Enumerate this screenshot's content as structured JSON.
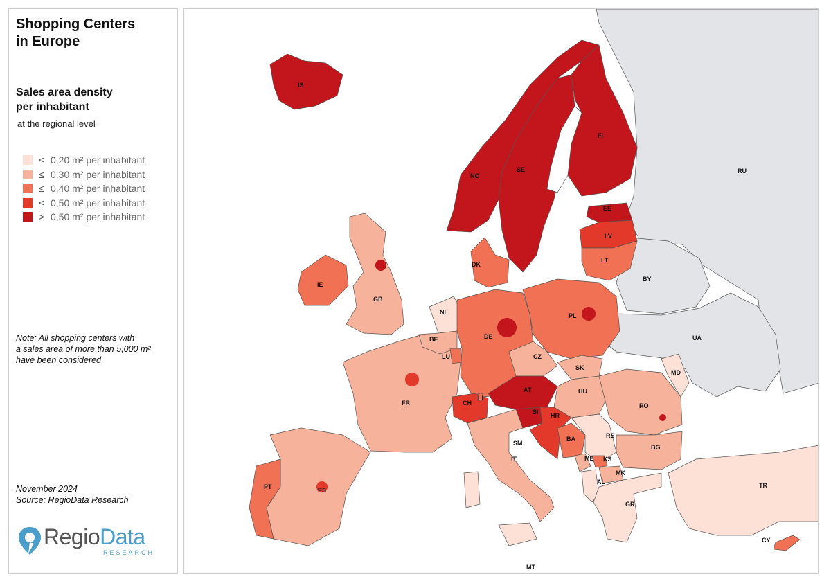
{
  "title_line1": "Shopping Centers",
  "title_line2": "in Europe",
  "subtitle_line1": "Sales area density",
  "subtitle_line2": "per inhabitant",
  "subnote": "at the regional level",
  "legend": [
    {
      "op": "≤",
      "label": "0,20 m² per inhabitant",
      "color": "#fde0d6"
    },
    {
      "op": "≤",
      "label": "0,30 m² per inhabitant",
      "color": "#f7b29b"
    },
    {
      "op": "≤",
      "label": "0,40 m² per inhabitant",
      "color": "#f07154"
    },
    {
      "op": "≤",
      "label": "0,50 m² per inhabitant",
      "color": "#e2392b"
    },
    {
      "op": ">",
      "label": "0,50 m² per inhabitant",
      "color": "#c2151c"
    }
  ],
  "note_line1": "Note: All shopping centers with",
  "note_line2": "a sales area of more than 5,000 m²",
  "note_line3": "have been considered",
  "date": "November 2024",
  "source": "Source: RegioData Research",
  "logo": {
    "part1": "Regio",
    "part2": "Data",
    "sub": "RESEARCH"
  },
  "non_eu_color": "#e3e4e8",
  "countries": {
    "IS": "IS",
    "NO": "NO",
    "SE": "SE",
    "FI": "FI",
    "RU": "RU",
    "EE": "EE",
    "LV": "LV",
    "LT": "LT",
    "BY": "BY",
    "DK": "DK",
    "IE": "IE",
    "GB": "GB",
    "NL": "NL",
    "BE": "BE",
    "LU": "LU",
    "DE": "DE",
    "PL": "PL",
    "CZ": "CZ",
    "SK": "SK",
    "UA": "UA",
    "MD": "MD",
    "AT": "AT",
    "HU": "HU",
    "RO": "RO",
    "FR": "FR",
    "CH": "CH",
    "LI": "LI",
    "SI": "SI",
    "HR": "HR",
    "BA": "BA",
    "RS": "RS",
    "BG": "BG",
    "SM": "SM",
    "IT": "IT",
    "ME": "ME",
    "KS": "KS",
    "MK": "MK",
    "AL": "AL",
    "GR": "GR",
    "TR": "TR",
    "PT": "PT",
    "ES": "ES",
    "CY": "CY",
    "MT": "MT"
  }
}
